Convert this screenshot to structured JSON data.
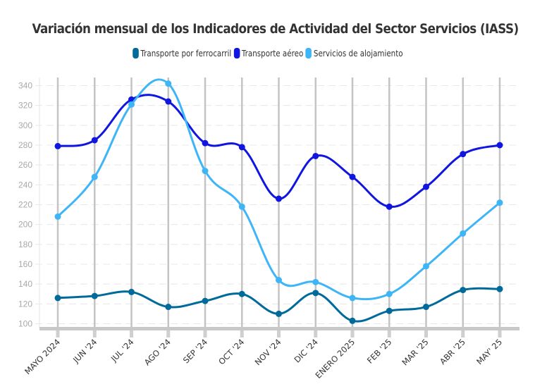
{
  "chart_data": {
    "type": "line",
    "title": "Variación mensual de los Indicadores de Actividad del Sector Servicios (IASS)",
    "xlabel": "",
    "ylabel": "",
    "ylim": [
      100,
      340
    ],
    "yticks": [
      100,
      120,
      140,
      160,
      180,
      200,
      220,
      240,
      260,
      280,
      300,
      320,
      340
    ],
    "categories": [
      "MAYO 2024",
      "JUN '24",
      "JUL '24",
      "AGO '24",
      "SEP '24",
      "OCT '24",
      "NOV '24",
      "DIC '24",
      "ENERO 2025",
      "FEB '25",
      "MAR '25",
      "ABR '25",
      "MAY' 25"
    ],
    "grid": true,
    "legend_position": "top-center",
    "series": [
      {
        "name": "Transporte por ferrocarril",
        "color": "#006a9b",
        "values": [
          126,
          128,
          132,
          117,
          123,
          130,
          110,
          131,
          103,
          113,
          117,
          134,
          135
        ]
      },
      {
        "name": "Transporte aéreo",
        "color": "#1016e0",
        "values": [
          279,
          285,
          326,
          324,
          282,
          278,
          226,
          269,
          248,
          218,
          238,
          271,
          280
        ]
      },
      {
        "name": "Servicios de alojamiento",
        "color": "#3db5f7",
        "values": [
          208,
          248,
          321,
          342,
          254,
          218,
          144,
          142,
          126,
          130,
          158,
          191,
          222
        ]
      }
    ]
  }
}
